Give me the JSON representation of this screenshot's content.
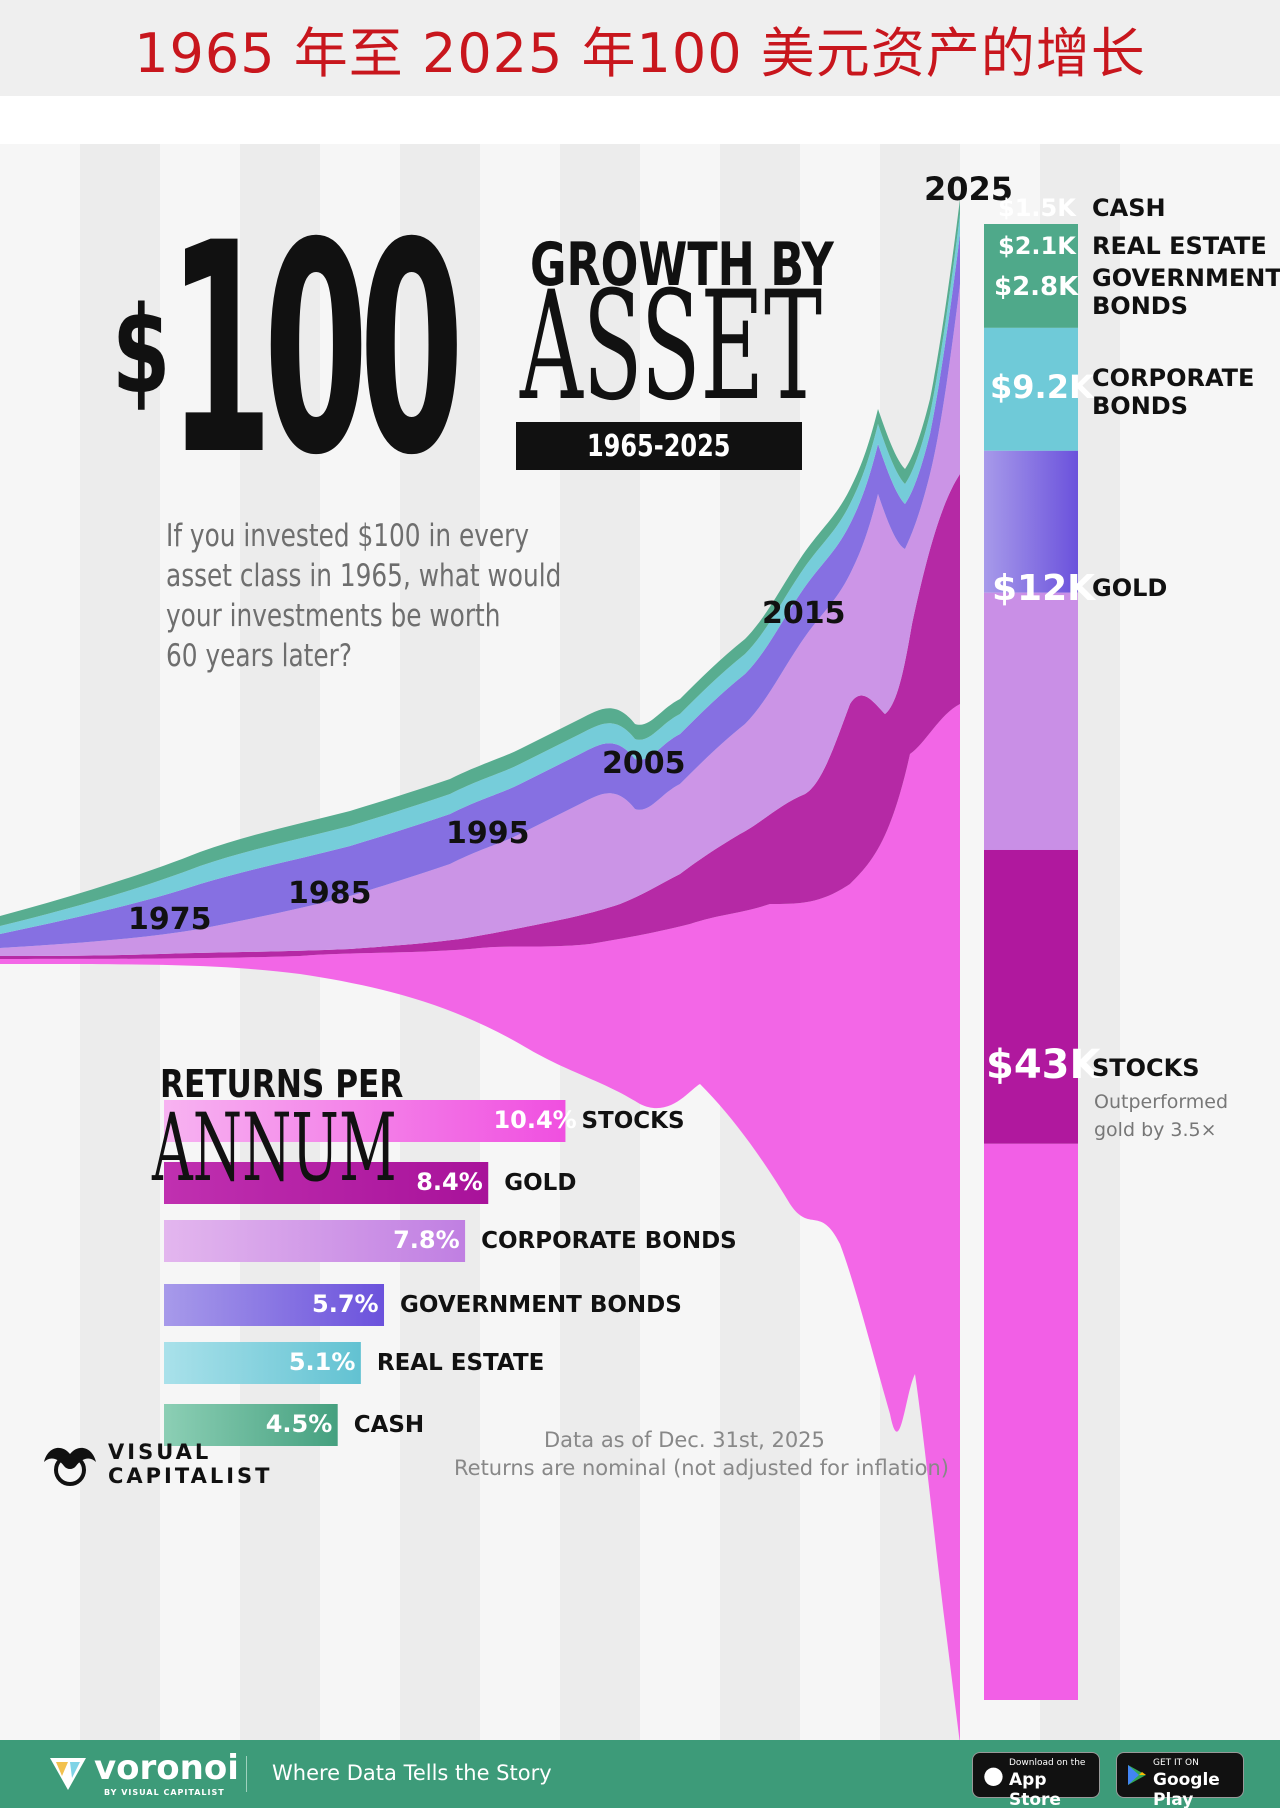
{
  "banner": {
    "title": "1965 年至 2025 年100 美元资产的增长"
  },
  "header": {
    "dollar_sign": "$",
    "amount": "100",
    "growth_by": "GROWTH BY",
    "asset": "ASSET",
    "period": "1965-2025"
  },
  "intro_text": [
    "If you invested $100 in every",
    "asset class in 1965, what would",
    "your investments be worth",
    "60 years later?"
  ],
  "returns_title": {
    "line1": "RETURNS PER",
    "line2": "ANNUM"
  },
  "notes": {
    "data_date": "Data as of Dec. 31st, 2025",
    "nominal": "Returns are nominal (not adjusted for inflation)"
  },
  "brand": {
    "logo_top": "VISUAL",
    "logo_bottom": "CAPITALIST"
  },
  "footer": {
    "brand": "voronoi",
    "brand_sub": "BY VISUAL CAPITALIST",
    "tagline": "Where Data Tells the Story",
    "app_store_small": "Download on the",
    "app_store_big": "App Store",
    "google_small": "GET IT ON",
    "google_big": "Google Play"
  },
  "colors": {
    "stocks": "#f25fe6",
    "gold": "#b0189e",
    "corporate_bonds": "#c98fe6",
    "government_bonds": "#7a62e0",
    "real_estate": "#6fcad8",
    "cash": "#4fa98a"
  },
  "chart_data": [
    {
      "type": "area",
      "title": "",
      "x_ticks": [
        "1975",
        "1985",
        "1995",
        "2005",
        "2015",
        "2025"
      ],
      "stack_order_bottom_to_top": [
        "STOCKS",
        "GOLD",
        "CORPORATE BONDS",
        "GOVERNMENT BONDS",
        "REAL ESTATE",
        "CASH"
      ],
      "final_values": [
        {
          "name": "CASH",
          "label": "$1.5K",
          "value": 1500
        },
        {
          "name": "REAL ESTATE",
          "label": "$2.1K",
          "value": 2100
        },
        {
          "name": "GOVERNMENT BONDS",
          "label": "$2.8K",
          "value": 2800
        },
        {
          "name": "CORPORATE BONDS",
          "label": "$9.2K",
          "value": 9200
        },
        {
          "name": "GOLD",
          "label": "$12K",
          "value": 12000
        },
        {
          "name": "STOCKS",
          "label": "$43K",
          "value": 43000
        }
      ],
      "annotation": {
        "series": "STOCKS",
        "line1": "Outperformed",
        "line2": "gold by 3.5×"
      }
    },
    {
      "type": "bar",
      "title": "RETURNS PER ANNUM",
      "categories": [
        "STOCKS",
        "GOLD",
        "CORPORATE BONDS",
        "GOVERNMENT BONDS",
        "REAL ESTATE",
        "CASH"
      ],
      "values": [
        10.4,
        8.4,
        7.8,
        5.7,
        5.1,
        4.5
      ],
      "unit": "%",
      "labels": [
        "10.4",
        "8.4",
        "7.8",
        "5.7",
        "5.1",
        "4.5"
      ]
    }
  ]
}
